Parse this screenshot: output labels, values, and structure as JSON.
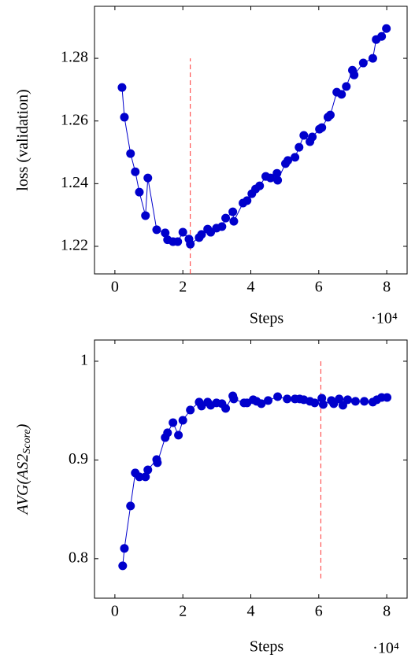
{
  "chart_data": [
    {
      "type": "line",
      "x_label": "Steps",
      "x_multiplier": "·10⁴",
      "y_label": "loss (validation)",
      "xlim": [
        -0.6,
        8.6
      ],
      "xticks": [
        0,
        2,
        4,
        6,
        8
      ],
      "ylim": [
        1.2112,
        1.2966
      ],
      "yticks": [
        1.22,
        1.24,
        1.26,
        1.28
      ],
      "vline": {
        "x": 2.22,
        "y": [
          1.2112,
          1.28
        ],
        "color": "#ff3333"
      },
      "series": [
        {
          "color": "#0000cc",
          "x": [
            0.21,
            0.28,
            0.46,
            0.6,
            0.72,
            0.9,
            0.97,
            1.23,
            1.48,
            1.55,
            1.71,
            1.85,
            2.0,
            2.18,
            2.22,
            2.48,
            2.55,
            2.73,
            2.82,
            2.99,
            3.15,
            3.26,
            3.47,
            3.5,
            3.77,
            3.89,
            4.03,
            4.14,
            4.26,
            4.44,
            4.58,
            4.77,
            4.79,
            5.02,
            5.09,
            5.3,
            5.42,
            5.56,
            5.74,
            5.81,
            6.02,
            6.09,
            6.27,
            6.34,
            6.53,
            6.67,
            6.81,
            6.99,
            7.04,
            7.31,
            7.59,
            7.69,
            7.85,
            7.99
          ],
          "values": [
            1.2707,
            1.2612,
            1.2496,
            1.2438,
            1.2373,
            1.2298,
            1.2418,
            1.2253,
            1.2243,
            1.2221,
            1.2215,
            1.2215,
            1.2245,
            1.2223,
            1.2207,
            1.2228,
            1.2238,
            1.2255,
            1.2245,
            1.2258,
            1.2263,
            1.229,
            1.231,
            1.228,
            1.2338,
            1.2346,
            1.2368,
            1.2383,
            1.2393,
            1.2423,
            1.2418,
            1.2433,
            1.2411,
            1.2464,
            1.2474,
            1.2484,
            1.2516,
            1.2554,
            1.2534,
            1.2549,
            1.2574,
            1.2579,
            1.2612,
            1.2619,
            1.2692,
            1.2685,
            1.271,
            1.2762,
            1.2747,
            1.2785,
            1.28,
            1.286,
            1.287,
            1.2895
          ]
        }
      ]
    },
    {
      "type": "line",
      "x_label": "Steps",
      "x_multiplier": "·10⁴",
      "y_label": "AVG(AS2",
      "y_label_sub": "Score",
      "y_label_end": ")",
      "xlim": [
        -0.6,
        8.6
      ],
      "xticks": [
        0,
        2,
        4,
        6,
        8
      ],
      "ylim": [
        0.76,
        1.0215
      ],
      "yticks": [
        0.8,
        0.9,
        1
      ],
      "vline": {
        "x": 6.06,
        "y": [
          0.78,
          1
        ]
      },
      "series": [
        {
          "color": "#0000cc",
          "x": [
            0.23,
            0.28,
            0.46,
            0.6,
            0.72,
            0.9,
            0.97,
            1.23,
            1.25,
            1.48,
            1.55,
            1.71,
            1.87,
            2.0,
            2.22,
            2.48,
            2.55,
            2.73,
            2.82,
            2.99,
            3.15,
            3.26,
            3.47,
            3.5,
            3.8,
            3.89,
            4.07,
            4.17,
            4.31,
            4.51,
            4.79,
            5.07,
            5.3,
            5.44,
            5.56,
            5.74,
            5.88,
            6.09,
            6.13,
            6.37,
            6.44,
            6.6,
            6.71,
            6.85,
            7.08,
            7.34,
            7.59,
            7.71,
            7.85,
            8.01
          ],
          "values": [
            0.7928,
            0.8104,
            0.8534,
            0.8869,
            0.8829,
            0.8829,
            0.89,
            0.9004,
            0.8972,
            0.9227,
            0.9275,
            0.9378,
            0.9251,
            0.9402,
            0.9506,
            0.9586,
            0.9546,
            0.9586,
            0.9554,
            0.9578,
            0.957,
            0.9522,
            0.9649,
            0.9618,
            0.9578,
            0.9578,
            0.961,
            0.9594,
            0.957,
            0.9602,
            0.9641,
            0.9618,
            0.9618,
            0.9618,
            0.961,
            0.9594,
            0.9578,
            0.9625,
            0.9562,
            0.9602,
            0.957,
            0.9618,
            0.9554,
            0.961,
            0.9594,
            0.9594,
            0.9586,
            0.961,
            0.9633,
            0.9633
          ]
        }
      ]
    }
  ]
}
